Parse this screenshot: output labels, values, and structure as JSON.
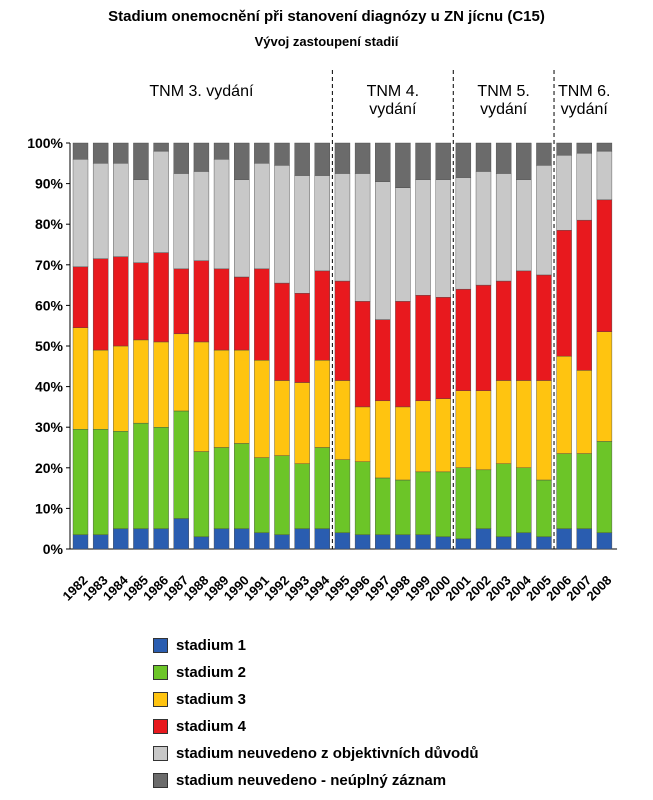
{
  "title": "Stadium onemocnění při stanovení diagnózy  u ZN jícnu (C15)",
  "subtitle": "Vývoj zastoupení stadií",
  "chart_data": {
    "type": "bar",
    "stacked": "percent",
    "categories": [
      "1982",
      "1983",
      "1984",
      "1985",
      "1986",
      "1987",
      "1988",
      "1989",
      "1990",
      "1991",
      "1992",
      "1993",
      "1994",
      "1995",
      "1996",
      "1997",
      "1998",
      "1999",
      "2000",
      "2001",
      "2002",
      "2003",
      "2004",
      "2005",
      "2006",
      "2007",
      "2008"
    ],
    "ylim": [
      0,
      100
    ],
    "yticks": [
      "0%",
      "10%",
      "20%",
      "30%",
      "40%",
      "50%",
      "60%",
      "70%",
      "80%",
      "90%",
      "100%"
    ],
    "series": [
      {
        "name": "stadium 1",
        "color": "#2a5db0",
        "values": [
          3.5,
          3.5,
          5,
          5,
          5,
          7.5,
          3,
          5,
          5,
          4,
          3.5,
          5,
          5,
          4,
          3.5,
          3.5,
          3.5,
          3.5,
          3,
          2.5,
          5,
          3,
          4,
          3,
          5,
          5,
          4
        ]
      },
      {
        "name": "stadium 2",
        "color": "#6cc528",
        "values": [
          26,
          26,
          24,
          26,
          25,
          26.5,
          21,
          20,
          21,
          18.5,
          19.5,
          16,
          20,
          18,
          18,
          14,
          13.5,
          15.5,
          16,
          17.5,
          14.5,
          18,
          16,
          14,
          18.5,
          18.5,
          22.5
        ]
      },
      {
        "name": "stadium 3",
        "color": "#ffc410",
        "values": [
          25,
          19.5,
          21,
          20.5,
          21,
          19,
          27,
          24,
          23,
          24,
          18.5,
          20,
          21.5,
          19.5,
          13.5,
          19,
          18,
          17.5,
          18,
          19,
          19.5,
          20.5,
          21.5,
          24.5,
          24,
          20.5,
          27
        ]
      },
      {
        "name": "stadium 4",
        "color": "#e8191e",
        "values": [
          15,
          22.5,
          22,
          19,
          22,
          16,
          20,
          20,
          18,
          22.5,
          24,
          22,
          22,
          24.5,
          26,
          20,
          26,
          26,
          25,
          25,
          26,
          24.5,
          27,
          26,
          31,
          37,
          32.5
        ]
      },
      {
        "name": "stadium neuvedeno z objektivních důvodů",
        "color": "#c8c8c8",
        "values": [
          26.5,
          23.5,
          23,
          20.5,
          25,
          23.5,
          22,
          27,
          24,
          26,
          29,
          29,
          23.5,
          26.5,
          31.5,
          34,
          28,
          28.5,
          29,
          27.5,
          28,
          26.5,
          22.5,
          27,
          18.5,
          16.5,
          12
        ]
      },
      {
        "name": "stadium neuvedeno - neúplný záznam",
        "color": "#6b6b6b",
        "values": [
          4,
          5,
          5,
          9,
          2,
          7.5,
          7,
          4,
          9,
          5,
          5.5,
          8,
          8,
          7.5,
          7.5,
          9.5,
          11,
          9,
          9,
          8.5,
          7,
          7.5,
          9,
          5.5,
          3,
          2.5,
          2
        ]
      }
    ],
    "periods": [
      {
        "label": "TNM  3. vydání",
        "start": 0,
        "end": 13
      },
      {
        "label": "TNM 4.\nvydání",
        "start": 13,
        "end": 19
      },
      {
        "label": "TNM 5.\nvydání",
        "start": 19,
        "end": 24
      },
      {
        "label": "TNM 6.\nvydání",
        "start": 24,
        "end": 27
      }
    ],
    "legend_position": "bottom"
  }
}
